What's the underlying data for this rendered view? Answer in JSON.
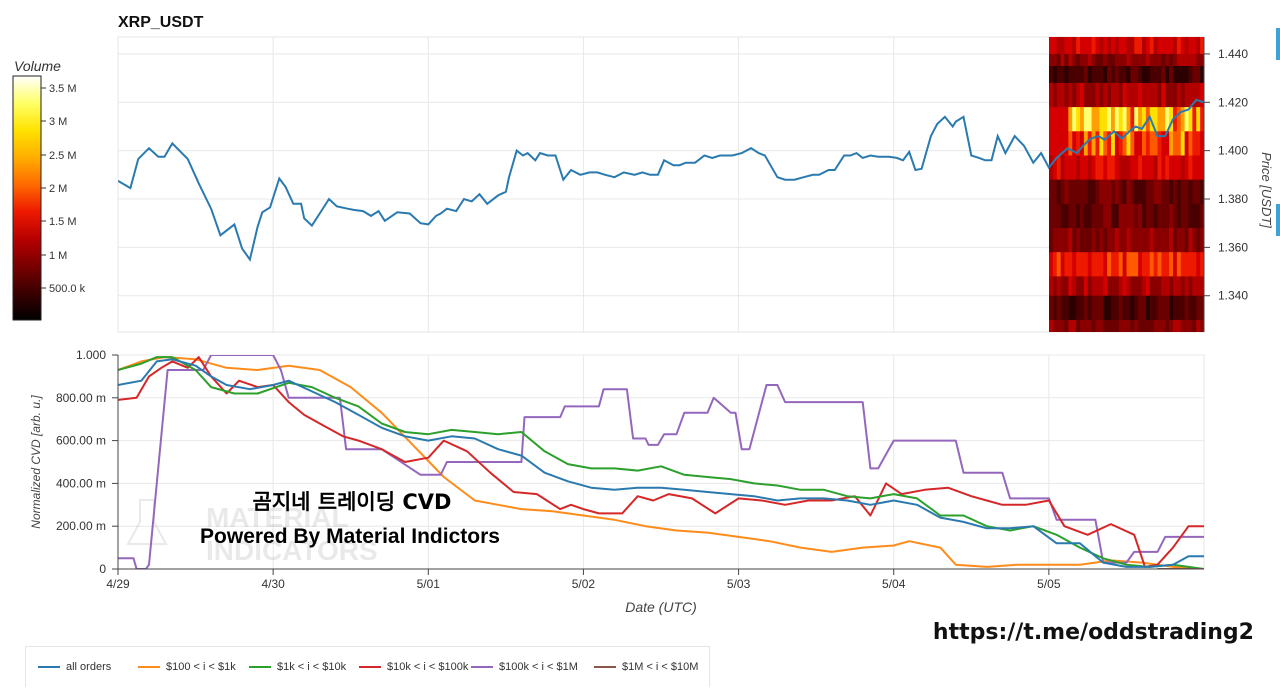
{
  "title": "XRP_USDT",
  "colorbar": {
    "label": "Volume",
    "ticks": [
      "3.5 M",
      "3 M",
      "2.5 M",
      "2 M",
      "1.5 M",
      "1 M",
      "500.0 k"
    ],
    "colors": [
      "#000000",
      "#3a0000",
      "#7a0000",
      "#b80000",
      "#ee1a00",
      "#ff6a00",
      "#ffae00",
      "#ffe200",
      "#ffff66",
      "#ffffff"
    ]
  },
  "watermark": {
    "line1": "곰지네 트레이딩 CVD",
    "line2": "Powered By Material Indictors",
    "bg_text": [
      "MATERIAL",
      "INDICATORS"
    ]
  },
  "url_text": "https://t.me/oddstrading2",
  "chart_data": [
    {
      "type": "line",
      "title": "XRP_USDT",
      "ylabel": "Price [USDT]",
      "ylim": [
        1.325,
        1.447
      ],
      "y_ticks": [
        "1.440",
        "1.420",
        "1.400",
        "1.380",
        "1.360",
        "1.340"
      ],
      "y_tick_values": [
        1.44,
        1.42,
        1.4,
        1.38,
        1.36,
        1.34
      ],
      "xlim": [
        0,
        7
      ],
      "grid": true,
      "series": [
        {
          "color": "#2a7ab0",
          "x": [
            0,
            0.08,
            0.13,
            0.2,
            0.26,
            0.3,
            0.35,
            0.45,
            0.52,
            0.6,
            0.66,
            0.75,
            0.8,
            0.85,
            0.9,
            0.93,
            0.98,
            1.04,
            1.08,
            1.13,
            1.18,
            1.2,
            1.25,
            1.3,
            1.36,
            1.41,
            1.48,
            1.52,
            1.58,
            1.63,
            1.68,
            1.72,
            1.8,
            1.88,
            1.95,
            2.0,
            2.05,
            2.08,
            2.12,
            2.18,
            2.23,
            2.28,
            2.33,
            2.38,
            2.45,
            2.5,
            2.52,
            2.57,
            2.61,
            2.64,
            2.69,
            2.72,
            2.77,
            2.82,
            2.87,
            2.92,
            2.98,
            3.04,
            3.09,
            3.14,
            3.2,
            3.26,
            3.33,
            3.38,
            3.43,
            3.48,
            3.52,
            3.58,
            3.62,
            3.66,
            3.72,
            3.78,
            3.83,
            3.88,
            3.92,
            3.96,
            4.02,
            4.08,
            4.13,
            4.17,
            4.25,
            4.3,
            4.36,
            4.42,
            4.48,
            4.52,
            4.58,
            4.62,
            4.68,
            4.72,
            4.76,
            4.8,
            4.85,
            4.9,
            4.94,
            4.97,
            5.02,
            5.06,
            5.1,
            5.14,
            5.18,
            5.24,
            5.28,
            5.33,
            5.38,
            5.4,
            5.45,
            5.5,
            5.55,
            5.59,
            5.63,
            5.67,
            5.72,
            5.78,
            5.84,
            5.9,
            5.95,
            6.0,
            6.05,
            6.12,
            6.18,
            6.22,
            6.27,
            6.32,
            6.36,
            6.42,
            6.47,
            6.52,
            6.56,
            6.6,
            6.65,
            6.7,
            6.75,
            6.8,
            6.85,
            6.9,
            6.95,
            7.0
          ],
          "values": [
            1.3875,
            1.3845,
            1.3965,
            1.401,
            1.3975,
            1.3975,
            1.403,
            1.3965,
            1.3865,
            1.376,
            1.365,
            1.3695,
            1.3595,
            1.355,
            1.3685,
            1.3745,
            1.3765,
            1.3885,
            1.385,
            1.378,
            1.378,
            1.372,
            1.369,
            1.374,
            1.38,
            1.377,
            1.376,
            1.3755,
            1.375,
            1.373,
            1.375,
            1.371,
            1.3745,
            1.374,
            1.37,
            1.3695,
            1.373,
            1.374,
            1.376,
            1.375,
            1.38,
            1.379,
            1.382,
            1.378,
            1.3815,
            1.383,
            1.389,
            1.4,
            1.398,
            1.399,
            1.396,
            1.399,
            1.398,
            1.398,
            1.388,
            1.392,
            1.39,
            1.391,
            1.391,
            1.39,
            1.389,
            1.391,
            1.39,
            1.391,
            1.39,
            1.39,
            1.396,
            1.394,
            1.394,
            1.395,
            1.395,
            1.398,
            1.397,
            1.398,
            1.398,
            1.398,
            1.399,
            1.401,
            1.399,
            1.398,
            1.389,
            1.388,
            1.388,
            1.389,
            1.39,
            1.39,
            1.392,
            1.392,
            1.398,
            1.398,
            1.399,
            1.397,
            1.398,
            1.3975,
            1.3975,
            1.3975,
            1.397,
            1.396,
            1.3995,
            1.392,
            1.3925,
            1.406,
            1.411,
            1.414,
            1.41,
            1.412,
            1.414,
            1.398,
            1.397,
            1.396,
            1.396,
            1.406,
            1.399,
            1.406,
            1.402,
            1.395,
            1.399,
            1.393,
            1.397,
            1.401,
            1.399,
            1.402,
            1.405,
            1.406,
            1.4045,
            1.408,
            1.405,
            1.408,
            1.41,
            1.409,
            1.414,
            1.406,
            1.406,
            1.413,
            1.416,
            1.417,
            1.421,
            1.42
          ]
        }
      ]
    },
    {
      "type": "line",
      "xlabel": "Date (UTC)",
      "ylabel": "Normalized CVD [arb. u.]",
      "ylim": [
        0,
        1.0
      ],
      "xlim": [
        0,
        7
      ],
      "grid": true,
      "x_ticks": [
        "4/29",
        "4/30",
        "5/01",
        "5/02",
        "5/03",
        "5/04",
        "5/05"
      ],
      "y_ticks": [
        "1.000",
        "800.00 m",
        "600.00 m",
        "400.00 m",
        "200.00 m",
        "0"
      ],
      "y_tick_values": [
        1.0,
        0.8,
        0.6,
        0.4,
        0.2,
        0
      ],
      "legend_position": "bottom-left",
      "series": [
        {
          "name": "all orders",
          "color": "#2a7ab0",
          "x": [
            0,
            0.15,
            0.25,
            0.35,
            0.5,
            0.6,
            0.7,
            0.85,
            1.0,
            1.1,
            1.25,
            1.4,
            1.55,
            1.7,
            1.85,
            2.0,
            2.15,
            2.3,
            2.45,
            2.6,
            2.75,
            2.9,
            3.05,
            3.2,
            3.35,
            3.5,
            3.65,
            3.8,
            3.95,
            4.1,
            4.25,
            4.4,
            4.55,
            4.7,
            4.85,
            5.0,
            5.15,
            5.3,
            5.45,
            5.6,
            5.75,
            5.9,
            6.05,
            6.2,
            6.35,
            6.5,
            6.65,
            6.8,
            6.9,
            7.0
          ],
          "values": [
            0.86,
            0.88,
            0.97,
            0.98,
            0.95,
            0.9,
            0.86,
            0.84,
            0.86,
            0.88,
            0.83,
            0.78,
            0.72,
            0.66,
            0.62,
            0.6,
            0.62,
            0.61,
            0.56,
            0.53,
            0.45,
            0.41,
            0.38,
            0.37,
            0.38,
            0.38,
            0.37,
            0.36,
            0.35,
            0.34,
            0.32,
            0.33,
            0.33,
            0.32,
            0.3,
            0.32,
            0.3,
            0.24,
            0.22,
            0.19,
            0.19,
            0.2,
            0.12,
            0.12,
            0.03,
            0.01,
            0.01,
            0.02,
            0.06,
            0.06
          ]
        },
        {
          "name": "$100 < i < $1k",
          "color": "#ff8c1a",
          "x": [
            0,
            0.15,
            0.3,
            0.5,
            0.7,
            0.9,
            1.1,
            1.3,
            1.5,
            1.7,
            1.9,
            2.1,
            2.3,
            2.45,
            2.6,
            2.8,
            3.0,
            3.2,
            3.4,
            3.6,
            3.8,
            4.0,
            4.2,
            4.4,
            4.6,
            4.8,
            5.0,
            5.1,
            5.3,
            5.4,
            5.6,
            5.8,
            6.0,
            6.2,
            6.4,
            6.6,
            6.8,
            7.0
          ],
          "values": [
            0.93,
            0.97,
            0.99,
            0.98,
            0.94,
            0.93,
            0.95,
            0.93,
            0.85,
            0.73,
            0.58,
            0.43,
            0.32,
            0.3,
            0.28,
            0.27,
            0.25,
            0.23,
            0.2,
            0.18,
            0.17,
            0.15,
            0.13,
            0.1,
            0.08,
            0.1,
            0.11,
            0.13,
            0.1,
            0.02,
            0.01,
            0.02,
            0.02,
            0.02,
            0.04,
            0.03,
            0.01,
            0.0
          ]
        },
        {
          "name": "$1k < i < $10k",
          "color": "#2ca02c",
          "x": [
            0,
            0.15,
            0.25,
            0.35,
            0.5,
            0.6,
            0.75,
            0.9,
            1.1,
            1.25,
            1.4,
            1.55,
            1.7,
            1.85,
            2.0,
            2.15,
            2.3,
            2.45,
            2.6,
            2.75,
            2.9,
            3.05,
            3.2,
            3.35,
            3.5,
            3.65,
            3.8,
            3.95,
            4.1,
            4.25,
            4.4,
            4.55,
            4.7,
            4.85,
            5.0,
            5.15,
            5.3,
            5.45,
            5.6,
            5.75,
            5.9,
            6.05,
            6.2,
            6.35,
            6.5,
            6.65,
            6.8,
            7.0
          ],
          "values": [
            0.93,
            0.96,
            0.99,
            0.99,
            0.93,
            0.85,
            0.82,
            0.82,
            0.87,
            0.85,
            0.8,
            0.76,
            0.68,
            0.64,
            0.63,
            0.65,
            0.64,
            0.63,
            0.64,
            0.55,
            0.49,
            0.47,
            0.47,
            0.46,
            0.48,
            0.44,
            0.43,
            0.42,
            0.4,
            0.39,
            0.37,
            0.37,
            0.34,
            0.33,
            0.35,
            0.33,
            0.25,
            0.25,
            0.2,
            0.18,
            0.2,
            0.16,
            0.1,
            0.05,
            0.02,
            0.01,
            0.02,
            0.0
          ]
        },
        {
          "name": "$10k < i < $100k",
          "color": "#d62728",
          "x": [
            0,
            0.12,
            0.2,
            0.28,
            0.35,
            0.45,
            0.52,
            0.6,
            0.7,
            0.78,
            0.9,
            1.0,
            1.1,
            1.2,
            1.3,
            1.45,
            1.55,
            1.7,
            1.85,
            2.0,
            2.1,
            2.25,
            2.4,
            2.55,
            2.7,
            2.85,
            2.92,
            3.0,
            3.1,
            3.25,
            3.35,
            3.45,
            3.55,
            3.7,
            3.85,
            4.0,
            4.15,
            4.3,
            4.45,
            4.6,
            4.75,
            4.85,
            4.95,
            5.05,
            5.2,
            5.35,
            5.5,
            5.6,
            5.7,
            5.85,
            6.0,
            6.1,
            6.25,
            6.4,
            6.55,
            6.62,
            6.7,
            6.8,
            6.9,
            7.0
          ],
          "values": [
            0.79,
            0.8,
            0.9,
            0.94,
            0.97,
            0.94,
            0.99,
            0.9,
            0.82,
            0.88,
            0.85,
            0.86,
            0.78,
            0.72,
            0.68,
            0.62,
            0.6,
            0.56,
            0.5,
            0.52,
            0.6,
            0.55,
            0.45,
            0.36,
            0.35,
            0.28,
            0.3,
            0.28,
            0.26,
            0.26,
            0.34,
            0.32,
            0.35,
            0.33,
            0.26,
            0.33,
            0.32,
            0.3,
            0.32,
            0.32,
            0.34,
            0.25,
            0.4,
            0.35,
            0.37,
            0.38,
            0.34,
            0.32,
            0.3,
            0.3,
            0.32,
            0.2,
            0.16,
            0.21,
            0.16,
            0.01,
            0.02,
            0.1,
            0.2,
            0.2
          ]
        },
        {
          "name": "$100k < i < $1M",
          "color": "#9467bd",
          "x": [
            0,
            0.1,
            0.12,
            0.18,
            0.2,
            0.32,
            0.34,
            0.55,
            0.6,
            1.0,
            1.05,
            1.1,
            1.25,
            1.28,
            1.43,
            1.47,
            1.7,
            1.95,
            2.08,
            2.12,
            2.16,
            2.5,
            2.6,
            2.62,
            2.72,
            2.76,
            2.85,
            2.88,
            3.1,
            3.13,
            3.28,
            3.32,
            3.4,
            3.42,
            3.48,
            3.52,
            3.6,
            3.65,
            3.8,
            3.84,
            3.95,
            3.98,
            4.02,
            4.07,
            4.18,
            4.22,
            4.25,
            4.3,
            4.6,
            4.8,
            4.85,
            4.9,
            5.0,
            5.05,
            5.4,
            5.45,
            5.7,
            5.75,
            6.0,
            6.05,
            6.3,
            6.35,
            6.5,
            6.55,
            6.7,
            6.75,
            7.0
          ],
          "values": [
            0.05,
            0.05,
            0.0,
            0.0,
            0.02,
            0.93,
            0.93,
            0.93,
            1.0,
            1.0,
            0.93,
            0.8,
            0.8,
            0.8,
            0.8,
            0.56,
            0.56,
            0.44,
            0.44,
            0.5,
            0.5,
            0.5,
            0.5,
            0.71,
            0.71,
            0.71,
            0.71,
            0.76,
            0.76,
            0.84,
            0.84,
            0.61,
            0.61,
            0.58,
            0.58,
            0.63,
            0.63,
            0.73,
            0.73,
            0.8,
            0.73,
            0.73,
            0.56,
            0.56,
            0.86,
            0.86,
            0.86,
            0.78,
            0.78,
            0.78,
            0.47,
            0.47,
            0.6,
            0.6,
            0.6,
            0.45,
            0.45,
            0.33,
            0.33,
            0.23,
            0.23,
            0.03,
            0.03,
            0.08,
            0.08,
            0.15,
            0.15
          ]
        },
        {
          "name": "$1M < i < $10M",
          "color": "#8c564b",
          "x": [
            6.7,
            7.0
          ],
          "values": [
            0.0,
            0.0
          ]
        }
      ]
    }
  ]
}
